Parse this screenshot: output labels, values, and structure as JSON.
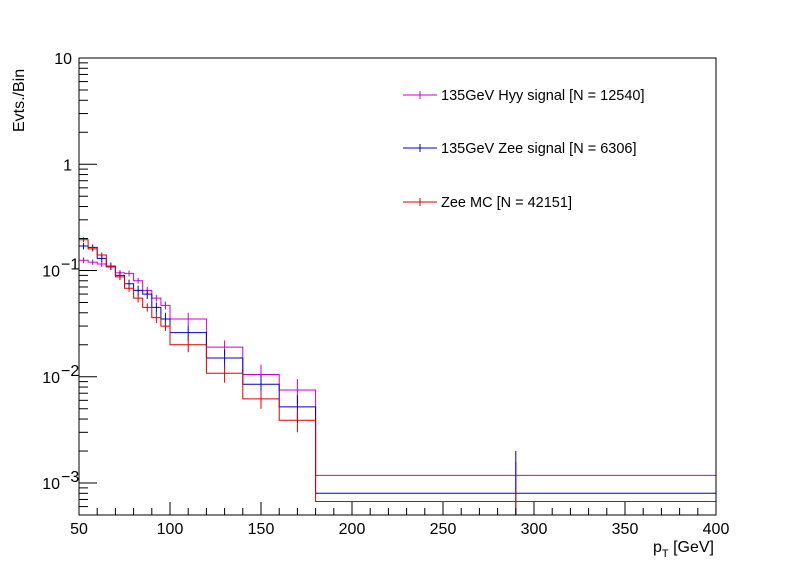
{
  "chart_data": {
    "type": "histogram",
    "scale": "log-y",
    "xlabel": {
      "main": "p",
      "sub": "T",
      "unit": " [GeV]"
    },
    "ylabel": "Evts./Bin",
    "xlim": [
      50,
      400
    ],
    "ylim": [
      0.0005,
      10
    ],
    "x_ticks": [
      50,
      100,
      150,
      200,
      250,
      300,
      350,
      400
    ],
    "x_tick_labels": [
      "50",
      "100",
      "150",
      "200",
      "250",
      "300",
      "350",
      "400"
    ],
    "y_ticks": [
      {
        "value": 10,
        "label": "10"
      },
      {
        "value": 1,
        "label": "1"
      },
      {
        "value": 0.1,
        "label": "10",
        "exp": "−1"
      },
      {
        "value": 0.01,
        "label": "10",
        "exp": "−2"
      },
      {
        "value": 0.001,
        "label": "10",
        "exp": "−3"
      }
    ],
    "bin_edges": [
      50,
      55,
      60,
      65,
      70,
      75,
      80,
      85,
      90,
      95,
      100,
      120,
      140,
      160,
      180,
      400
    ],
    "series": [
      {
        "name": "135GeV Hyy signal [N = 12540]",
        "color": "#cc00cc",
        "values": [
          0.125,
          0.12,
          0.115,
          0.108,
          0.095,
          0.094,
          0.08,
          0.065,
          0.055,
          0.047,
          0.035,
          0.019,
          0.0105,
          0.0075,
          0.00118
        ],
        "errors": [
          0.008,
          0.007,
          0.007,
          0.006,
          0.006,
          0.006,
          0.005,
          0.005,
          0.004,
          0.004,
          0.005,
          0.003,
          0.0025,
          0.002,
          0.0004
        ]
      },
      {
        "name": "135GeV Zee signal [N = 6306]",
        "color": "#0000cc",
        "values": [
          0.17,
          0.165,
          0.13,
          0.11,
          0.09,
          0.075,
          0.065,
          0.06,
          0.045,
          0.035,
          0.026,
          0.015,
          0.0085,
          0.0052,
          0.0008
        ],
        "errors": [
          0.012,
          0.011,
          0.01,
          0.009,
          0.008,
          0.007,
          0.007,
          0.006,
          0.005,
          0.005,
          0.004,
          0.003,
          0.002,
          0.0015,
          0.0012
        ]
      },
      {
        "name": "Zee MC [N = 42151]",
        "color": "#dd0000",
        "values": [
          0.195,
          0.16,
          0.14,
          0.11,
          0.087,
          0.068,
          0.055,
          0.045,
          0.036,
          0.03,
          0.02,
          0.0108,
          0.0062,
          0.0039,
          0.00067
        ],
        "errors": [
          0.01,
          0.009,
          0.008,
          0.007,
          0.006,
          0.005,
          0.005,
          0.004,
          0.004,
          0.003,
          0.003,
          0.002,
          0.0012,
          0.0009,
          0.0002
        ]
      }
    ]
  }
}
